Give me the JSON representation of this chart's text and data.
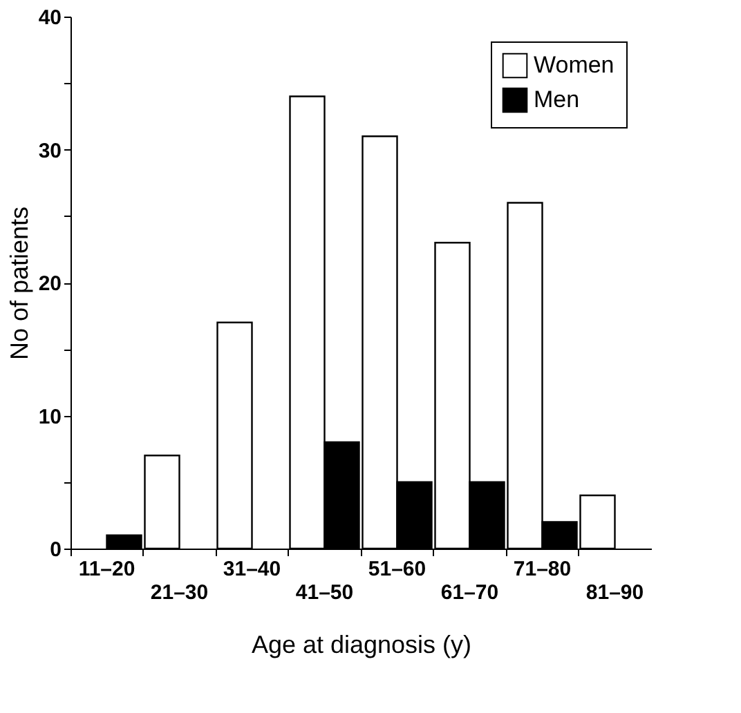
{
  "chart_data": {
    "type": "bar",
    "xlabel": "Age at diagnosis (y)",
    "ylabel": "No of patients",
    "categories": [
      "11–20",
      "21–30",
      "31–40",
      "41–50",
      "51–60",
      "61–70",
      "71–80",
      "81–90"
    ],
    "series": [
      {
        "name": "Women",
        "color": "#ffffff",
        "values": [
          0,
          7,
          17,
          34,
          31,
          23,
          26,
          4
        ]
      },
      {
        "name": "Men",
        "color": "#000000",
        "values": [
          1,
          0,
          0,
          8,
          5,
          5,
          2,
          0
        ]
      }
    ],
    "ylim": [
      0,
      40
    ],
    "yticks": [
      0,
      {
        "value": 5,
        "label": null
      },
      10,
      {
        "value": 15,
        "label": null
      },
      20,
      {
        "value": 25,
        "label": null
      },
      30,
      {
        "value": 35,
        "label": null
      },
      40
    ],
    "grid": false,
    "legend": "top right"
  }
}
